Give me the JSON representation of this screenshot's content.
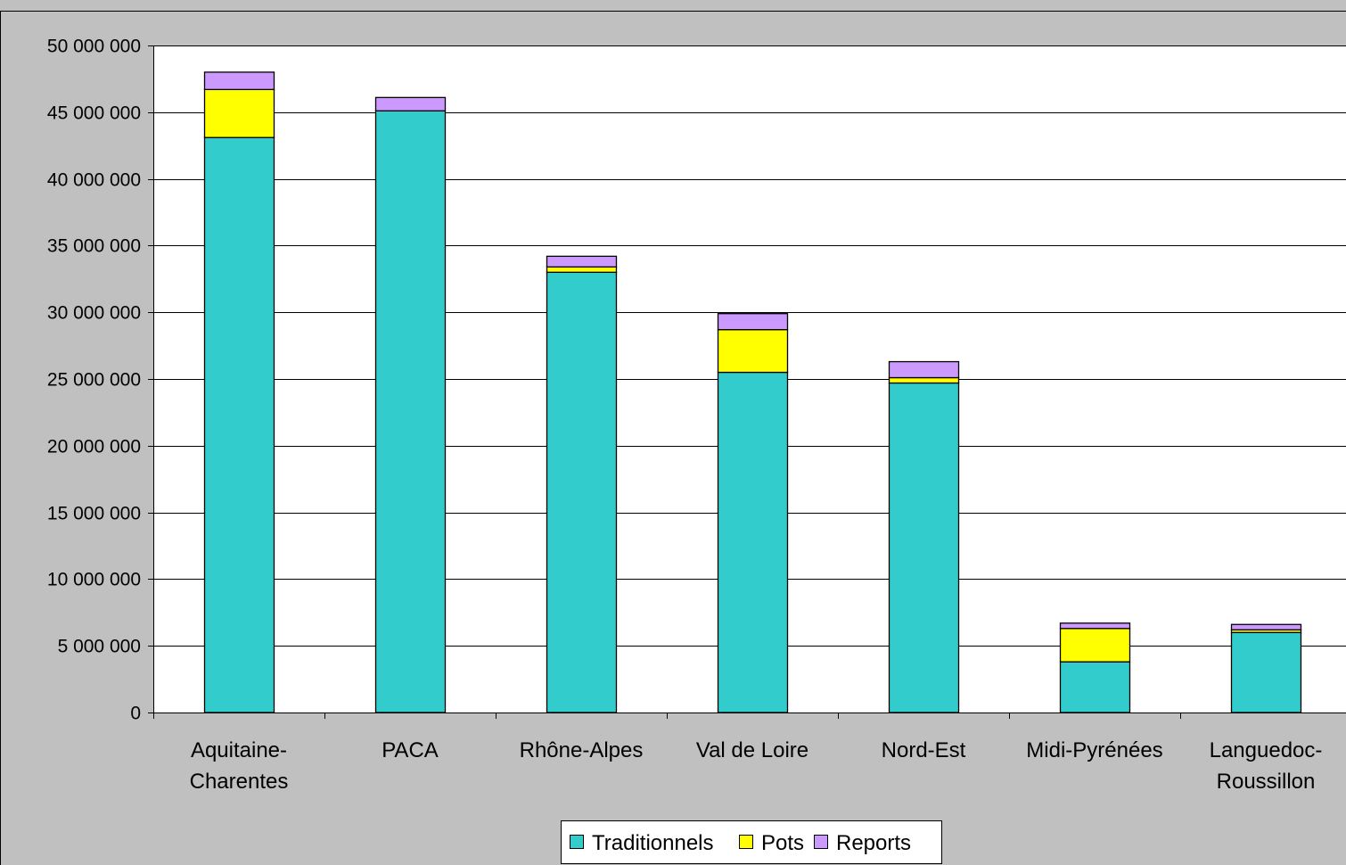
{
  "chart_data": {
    "type": "bar",
    "stacked": true,
    "title": "",
    "xlabel": "",
    "ylabel": "",
    "ylim": [
      0,
      50000000
    ],
    "yticks": [
      "0",
      "5 000 000",
      "10 000 000",
      "15 000 000",
      "20 000 000",
      "25 000 000",
      "30 000 000",
      "35 000 000",
      "40 000 000",
      "45 000 000",
      "50 000 000"
    ],
    "ytick_values": [
      0,
      5000000,
      10000000,
      15000000,
      20000000,
      25000000,
      30000000,
      35000000,
      40000000,
      45000000,
      50000000
    ],
    "categories": [
      [
        "Aquitaine-",
        "Charentes"
      ],
      [
        "PACA"
      ],
      [
        "Rhône-Alpes"
      ],
      [
        "Val de Loire"
      ],
      [
        "Nord-Est"
      ],
      [
        "Midi-Pyrénées"
      ],
      [
        "Languedoc-",
        "Roussillon"
      ]
    ],
    "series": [
      {
        "name": "Traditionnels",
        "color": "#33cccc",
        "values": [
          43100000,
          45100000,
          33000000,
          25500000,
          24700000,
          3800000,
          6000000
        ]
      },
      {
        "name": "Pots",
        "color": "#ffff00",
        "values": [
          3600000,
          0,
          400000,
          3200000,
          400000,
          2500000,
          200000
        ]
      },
      {
        "name": "Reports",
        "color": "#cc99ff",
        "values": [
          1300000,
          1000000,
          800000,
          1200000,
          1200000,
          400000,
          400000
        ]
      }
    ],
    "grid": true,
    "legend_position": "bottom"
  }
}
